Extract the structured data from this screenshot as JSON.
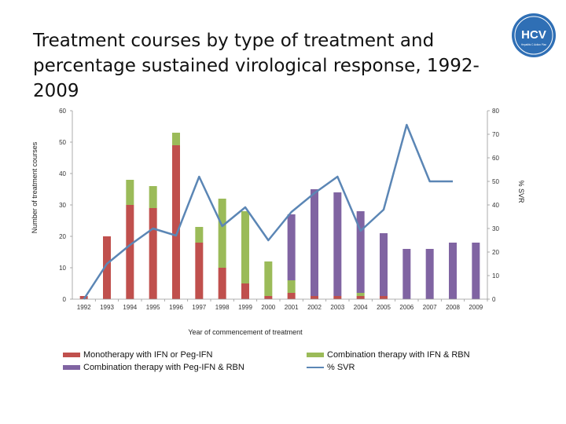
{
  "title": "Treatment courses by type of treatment and percentage sustained virological response, 1992-2009",
  "logo": {
    "text": "HCV",
    "subtext": "Hepatitis C Action Plan"
  },
  "colors": {
    "mono": "#c0504d",
    "combo": "#9bbb59",
    "peg": "#8064a2",
    "svr": "#5b86b5"
  },
  "chart_data": {
    "type": "bar",
    "stacked": true,
    "categories": [
      "1992",
      "1993",
      "1994",
      "1995",
      "1996",
      "1997",
      "1998",
      "1999",
      "2000",
      "2001",
      "2002",
      "2003",
      "2004",
      "2005",
      "2006",
      "2007",
      "2008",
      "2009"
    ],
    "series": [
      {
        "name": "Monotherapy with IFN or Peg-IFN",
        "values": [
          1,
          20,
          30,
          29,
          49,
          18,
          10,
          5,
          1,
          2,
          1,
          1,
          1,
          1,
          0,
          0,
          0,
          0
        ]
      },
      {
        "name": "Combination therapy with IFN & RBN",
        "values": [
          0,
          0,
          8,
          7,
          4,
          5,
          22,
          23,
          11,
          4,
          0,
          0,
          1,
          0,
          0,
          0,
          0,
          0
        ]
      },
      {
        "name": "Combination therapy with Peg-IFN & RBN",
        "values": [
          0,
          0,
          0,
          0,
          0,
          0,
          0,
          0,
          0,
          21,
          34,
          33,
          26,
          20,
          16,
          16,
          18,
          18
        ]
      }
    ],
    "line_series": {
      "name": "% SVR",
      "axis": "right",
      "values": [
        0,
        15,
        23,
        30,
        27,
        52,
        31,
        39,
        25,
        37,
        45,
        52,
        29,
        38,
        74,
        50,
        50,
        null
      ]
    },
    "xlabel": "Year of commencement of treatment",
    "ylabel": "Number of treatment courses",
    "ylabel_right": "% SVR",
    "ylim": [
      0,
      60
    ],
    "yticks": [
      0,
      10,
      20,
      30,
      40,
      50,
      60
    ],
    "ylim_right": [
      0,
      80
    ],
    "yticks_right": [
      0,
      10,
      20,
      30,
      40,
      50,
      60,
      70,
      80
    ],
    "grid": false,
    "legend_position": "bottom"
  },
  "legend": {
    "items": [
      {
        "label": "Monotherapy with IFN or Peg-IFN"
      },
      {
        "label": "Combination therapy with IFN & RBN"
      },
      {
        "label": "Combination therapy with Peg-IFN & RBN"
      },
      {
        "label": "% SVR"
      }
    ]
  }
}
